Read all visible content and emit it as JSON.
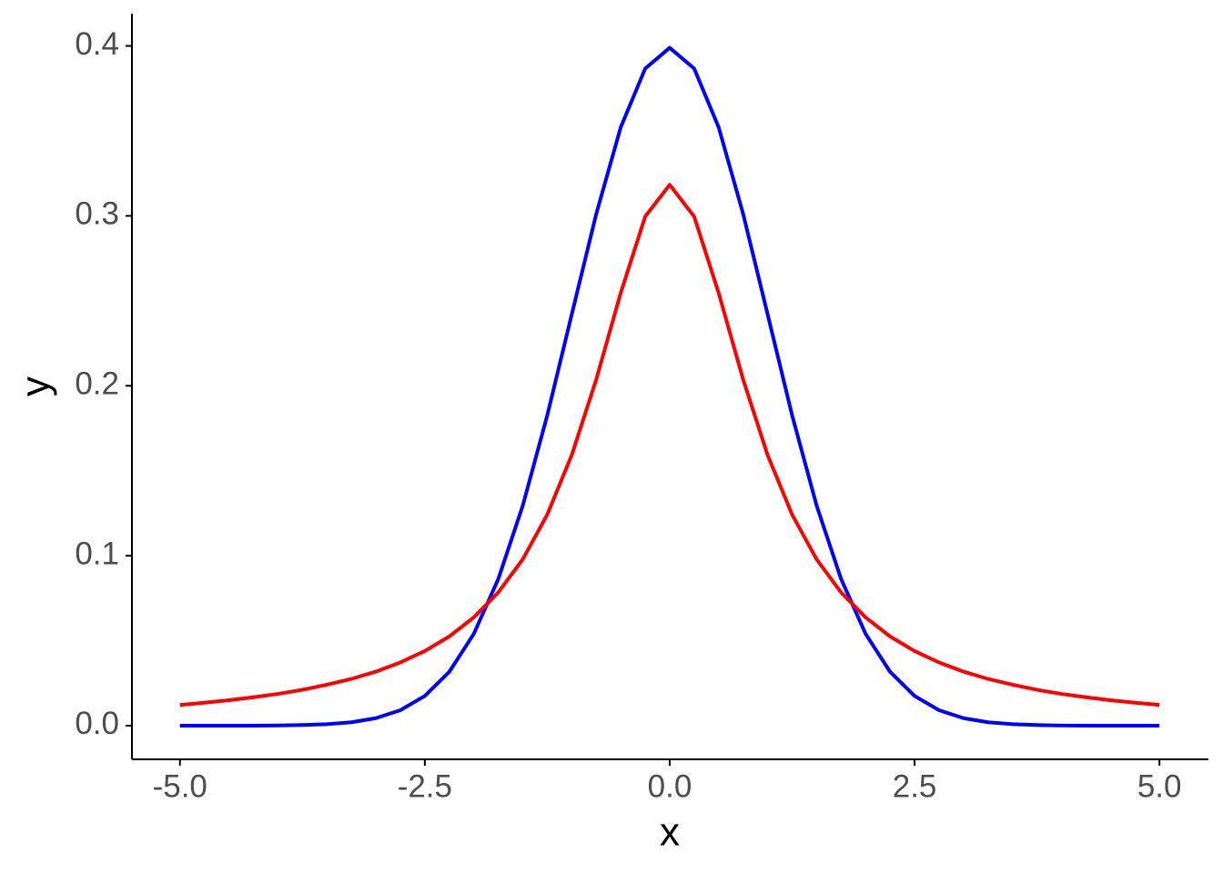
{
  "chart_data": {
    "type": "line",
    "x_label": "x",
    "y_label": "y",
    "x": [
      -5,
      -4.75,
      -4.5,
      -4.25,
      -4,
      -3.75,
      -3.5,
      -3.25,
      -3,
      -2.75,
      -2.5,
      -2.25,
      -2,
      -1.75,
      -1.5,
      -1.25,
      -1,
      -0.75,
      -0.5,
      -0.25,
      0,
      0.25,
      0.5,
      0.75,
      1,
      1.25,
      1.5,
      1.75,
      2,
      2.25,
      2.5,
      2.75,
      3,
      3.25,
      3.5,
      3.75,
      4,
      4.25,
      4.5,
      4.75,
      5
    ],
    "series": [
      {
        "color": "#0000ff",
        "values": [
          0,
          0,
          0,
          0,
          0.0001,
          0.0004,
          0.0009,
          0.002,
          0.0044,
          0.0091,
          0.0175,
          0.0317,
          0.054,
          0.0863,
          0.1295,
          0.1826,
          0.242,
          0.3011,
          0.3521,
          0.3867,
          0.3989,
          0.3867,
          0.3521,
          0.3011,
          0.242,
          0.1826,
          0.1295,
          0.0863,
          0.054,
          0.0317,
          0.0175,
          0.0091,
          0.0044,
          0.002,
          0.0009,
          0.0004,
          0.0001,
          0,
          0,
          0,
          0
        ]
      },
      {
        "color": "#ff0000",
        "values": [
          0.0122,
          0.0135,
          0.015,
          0.0167,
          0.0187,
          0.0211,
          0.0241,
          0.0275,
          0.0318,
          0.0372,
          0.0439,
          0.0525,
          0.0637,
          0.0784,
          0.0979,
          0.1242,
          0.1592,
          0.2037,
          0.2546,
          0.2996,
          0.3183,
          0.2996,
          0.2546,
          0.2037,
          0.1592,
          0.1242,
          0.0979,
          0.0784,
          0.0637,
          0.0525,
          0.0439,
          0.0372,
          0.0318,
          0.0275,
          0.0241,
          0.0211,
          0.0187,
          0.0167,
          0.015,
          0.0135,
          0.0122
        ]
      }
    ],
    "xlim": [
      -5.49,
      5.5
    ],
    "ylim": [
      -0.0198,
      0.419
    ],
    "xticks": [
      {
        "value": -5,
        "label": "-5.0"
      },
      {
        "value": -2.5,
        "label": "-2.5"
      },
      {
        "value": 0,
        "label": "0.0"
      },
      {
        "value": 2.5,
        "label": "2.5"
      },
      {
        "value": 5,
        "label": "5.0"
      }
    ],
    "yticks": [
      {
        "value": 0,
        "label": "0.0"
      },
      0.1,
      0.2,
      0.3,
      0.4
    ],
    "grid": false
  }
}
